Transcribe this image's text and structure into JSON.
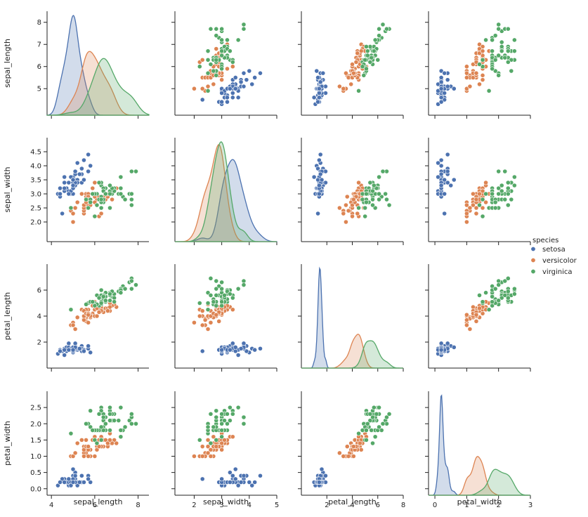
{
  "chart_data": {
    "type": "scatter",
    "title": "",
    "variables": [
      "sepal_length",
      "sepal_width",
      "petal_length",
      "petal_width"
    ],
    "axis_ranges": {
      "sepal_length": [
        3.8,
        8.5
      ],
      "sepal_width": [
        1.3,
        5.0
      ],
      "petal_length": [
        0.0,
        8.0
      ],
      "petal_width": [
        -0.2,
        3.0
      ]
    },
    "ticks": {
      "sepal_length": {
        "values": [
          4,
          6,
          8
        ],
        "labels": [
          "4",
          "6",
          "8"
        ],
        "row_values": [
          5,
          6,
          7,
          8
        ],
        "row_labels": [
          "5",
          "6",
          "7",
          "8"
        ]
      },
      "sepal_width": {
        "values": [
          2,
          3,
          4,
          5
        ],
        "labels": [
          "2",
          "3",
          "4",
          "5"
        ],
        "row_values": [
          2.0,
          2.5,
          3.0,
          3.5,
          4.0,
          4.5
        ],
        "row_labels": [
          "2.0",
          "2.5",
          "3.0",
          "3.5",
          "4.0",
          "4.5"
        ]
      },
      "petal_length": {
        "values": [
          2,
          4,
          6,
          8
        ],
        "labels": [
          "2",
          "4",
          "6",
          "8"
        ],
        "row_values": [
          2,
          4,
          6
        ],
        "row_labels": [
          "2",
          "4",
          "6"
        ]
      },
      "petal_width": {
        "values": [
          0,
          1,
          2,
          3
        ],
        "labels": [
          "0",
          "1",
          "2",
          "3"
        ],
        "row_values": [
          0.0,
          0.5,
          1.0,
          1.5,
          2.0,
          2.5
        ],
        "row_labels": [
          "0.0",
          "0.5",
          "1.0",
          "1.5",
          "2.0",
          "2.5"
        ]
      }
    },
    "legend": {
      "title": "species",
      "position": "right",
      "entries": [
        {
          "name": "setosa",
          "color": "#4c72b0"
        },
        {
          "name": "versicolor",
          "color": "#dd8452"
        },
        {
          "name": "virginica",
          "color": "#55a868"
        }
      ]
    },
    "series": [
      {
        "name": "setosa",
        "points": [
          [
            5.1,
            3.5,
            1.4,
            0.2
          ],
          [
            4.9,
            3.0,
            1.4,
            0.2
          ],
          [
            4.7,
            3.2,
            1.3,
            0.2
          ],
          [
            4.6,
            3.1,
            1.5,
            0.2
          ],
          [
            5.0,
            3.6,
            1.4,
            0.2
          ],
          [
            5.4,
            3.9,
            1.7,
            0.4
          ],
          [
            4.6,
            3.4,
            1.4,
            0.3
          ],
          [
            5.0,
            3.4,
            1.5,
            0.2
          ],
          [
            4.4,
            2.9,
            1.4,
            0.2
          ],
          [
            4.9,
            3.1,
            1.5,
            0.1
          ],
          [
            5.4,
            3.7,
            1.5,
            0.2
          ],
          [
            4.8,
            3.4,
            1.6,
            0.2
          ],
          [
            4.8,
            3.0,
            1.4,
            0.1
          ],
          [
            4.3,
            3.0,
            1.1,
            0.1
          ],
          [
            5.8,
            4.0,
            1.2,
            0.2
          ],
          [
            5.7,
            4.4,
            1.5,
            0.4
          ],
          [
            5.4,
            3.9,
            1.3,
            0.4
          ],
          [
            5.1,
            3.5,
            1.4,
            0.3
          ],
          [
            5.7,
            3.8,
            1.7,
            0.3
          ],
          [
            5.1,
            3.8,
            1.5,
            0.3
          ],
          [
            5.4,
            3.4,
            1.7,
            0.2
          ],
          [
            5.1,
            3.7,
            1.5,
            0.4
          ],
          [
            4.6,
            3.6,
            1.0,
            0.2
          ],
          [
            5.1,
            3.3,
            1.7,
            0.5
          ],
          [
            4.8,
            3.4,
            1.9,
            0.2
          ],
          [
            5.0,
            3.0,
            1.6,
            0.2
          ],
          [
            5.0,
            3.4,
            1.6,
            0.4
          ],
          [
            5.2,
            3.5,
            1.5,
            0.2
          ],
          [
            5.2,
            3.4,
            1.4,
            0.2
          ],
          [
            4.7,
            3.2,
            1.6,
            0.2
          ],
          [
            4.8,
            3.1,
            1.6,
            0.2
          ],
          [
            5.4,
            3.4,
            1.5,
            0.4
          ],
          [
            5.2,
            4.1,
            1.5,
            0.1
          ],
          [
            5.5,
            4.2,
            1.4,
            0.2
          ],
          [
            4.9,
            3.1,
            1.5,
            0.2
          ],
          [
            5.0,
            3.2,
            1.2,
            0.2
          ],
          [
            5.5,
            3.5,
            1.3,
            0.2
          ],
          [
            4.9,
            3.6,
            1.4,
            0.1
          ],
          [
            4.4,
            3.0,
            1.3,
            0.2
          ],
          [
            5.1,
            3.4,
            1.5,
            0.2
          ],
          [
            5.0,
            3.5,
            1.3,
            0.3
          ],
          [
            4.5,
            2.3,
            1.3,
            0.3
          ],
          [
            4.4,
            3.2,
            1.3,
            0.2
          ],
          [
            5.0,
            3.5,
            1.6,
            0.6
          ],
          [
            5.1,
            3.8,
            1.9,
            0.4
          ],
          [
            4.8,
            3.0,
            1.4,
            0.3
          ],
          [
            5.1,
            3.8,
            1.6,
            0.2
          ],
          [
            4.6,
            3.2,
            1.4,
            0.2
          ],
          [
            5.3,
            3.7,
            1.5,
            0.2
          ],
          [
            5.0,
            3.3,
            1.4,
            0.2
          ]
        ]
      },
      {
        "name": "versicolor",
        "points": [
          [
            7.0,
            3.2,
            4.7,
            1.4
          ],
          [
            6.4,
            3.2,
            4.5,
            1.5
          ],
          [
            6.9,
            3.1,
            4.9,
            1.5
          ],
          [
            5.5,
            2.3,
            4.0,
            1.3
          ],
          [
            6.5,
            2.8,
            4.6,
            1.5
          ],
          [
            5.7,
            2.8,
            4.5,
            1.3
          ],
          [
            6.3,
            3.3,
            4.7,
            1.6
          ],
          [
            4.9,
            2.4,
            3.3,
            1.0
          ],
          [
            6.6,
            2.9,
            4.6,
            1.3
          ],
          [
            5.2,
            2.7,
            3.9,
            1.4
          ],
          [
            5.0,
            2.0,
            3.5,
            1.0
          ],
          [
            5.9,
            3.0,
            4.2,
            1.5
          ],
          [
            6.0,
            2.2,
            4.0,
            1.0
          ],
          [
            6.1,
            2.9,
            4.7,
            1.4
          ],
          [
            5.6,
            2.9,
            3.6,
            1.3
          ],
          [
            6.7,
            3.1,
            4.4,
            1.4
          ],
          [
            5.6,
            3.0,
            4.5,
            1.5
          ],
          [
            5.8,
            2.7,
            4.1,
            1.0
          ],
          [
            6.2,
            2.2,
            4.5,
            1.5
          ],
          [
            5.6,
            2.5,
            3.9,
            1.1
          ],
          [
            5.9,
            3.2,
            4.8,
            1.8
          ],
          [
            6.1,
            2.8,
            4.0,
            1.3
          ],
          [
            6.3,
            2.5,
            4.9,
            1.5
          ],
          [
            6.1,
            2.8,
            4.7,
            1.2
          ],
          [
            6.4,
            2.9,
            4.3,
            1.3
          ],
          [
            6.6,
            3.0,
            4.4,
            1.4
          ],
          [
            6.8,
            2.8,
            4.8,
            1.4
          ],
          [
            6.7,
            3.0,
            5.0,
            1.7
          ],
          [
            6.0,
            2.9,
            4.5,
            1.5
          ],
          [
            5.7,
            2.6,
            3.5,
            1.0
          ],
          [
            5.5,
            2.4,
            3.8,
            1.1
          ],
          [
            5.5,
            2.4,
            3.7,
            1.0
          ],
          [
            5.8,
            2.7,
            3.9,
            1.2
          ],
          [
            6.0,
            2.7,
            5.1,
            1.6
          ],
          [
            5.4,
            3.0,
            4.5,
            1.5
          ],
          [
            6.0,
            3.4,
            4.5,
            1.6
          ],
          [
            6.7,
            3.1,
            4.7,
            1.5
          ],
          [
            6.3,
            2.3,
            4.4,
            1.3
          ],
          [
            5.6,
            3.0,
            4.1,
            1.3
          ],
          [
            5.5,
            2.5,
            4.0,
            1.3
          ],
          [
            5.5,
            2.6,
            4.4,
            1.2
          ],
          [
            6.1,
            3.0,
            4.6,
            1.4
          ],
          [
            5.8,
            2.6,
            4.0,
            1.2
          ],
          [
            5.0,
            2.3,
            3.3,
            1.0
          ],
          [
            5.6,
            2.7,
            4.2,
            1.3
          ],
          [
            5.7,
            3.0,
            4.2,
            1.2
          ],
          [
            5.7,
            2.9,
            4.2,
            1.3
          ],
          [
            6.2,
            2.9,
            4.3,
            1.3
          ],
          [
            5.1,
            2.5,
            3.0,
            1.1
          ],
          [
            5.7,
            2.8,
            4.1,
            1.3
          ]
        ]
      },
      {
        "name": "virginica",
        "points": [
          [
            6.3,
            3.3,
            6.0,
            2.5
          ],
          [
            5.8,
            2.7,
            5.1,
            1.9
          ],
          [
            7.1,
            3.0,
            5.9,
            2.1
          ],
          [
            6.3,
            2.9,
            5.6,
            1.8
          ],
          [
            6.5,
            3.0,
            5.8,
            2.2
          ],
          [
            7.6,
            3.0,
            6.6,
            2.1
          ],
          [
            4.9,
            2.5,
            4.5,
            1.7
          ],
          [
            7.3,
            2.9,
            6.3,
            1.8
          ],
          [
            6.7,
            2.5,
            5.8,
            1.8
          ],
          [
            7.2,
            3.6,
            6.1,
            2.5
          ],
          [
            6.5,
            3.2,
            5.1,
            2.0
          ],
          [
            6.4,
            2.7,
            5.3,
            1.9
          ],
          [
            6.8,
            3.0,
            5.5,
            2.1
          ],
          [
            5.7,
            2.5,
            5.0,
            2.0
          ],
          [
            5.8,
            2.8,
            5.1,
            2.4
          ],
          [
            6.4,
            3.2,
            5.3,
            2.3
          ],
          [
            6.5,
            3.0,
            5.5,
            1.8
          ],
          [
            7.7,
            3.8,
            6.7,
            2.2
          ],
          [
            7.7,
            2.6,
            6.9,
            2.3
          ],
          [
            6.0,
            2.2,
            5.0,
            1.5
          ],
          [
            6.9,
            3.2,
            5.7,
            2.3
          ],
          [
            5.6,
            2.8,
            4.9,
            2.0
          ],
          [
            7.7,
            2.8,
            6.7,
            2.0
          ],
          [
            6.3,
            2.7,
            4.9,
            1.8
          ],
          [
            6.7,
            3.3,
            5.7,
            2.1
          ],
          [
            7.2,
            3.2,
            6.0,
            1.8
          ],
          [
            6.2,
            2.8,
            4.8,
            1.8
          ],
          [
            6.1,
            3.0,
            4.9,
            1.8
          ],
          [
            6.4,
            2.8,
            5.6,
            2.1
          ],
          [
            7.2,
            3.0,
            5.8,
            1.6
          ],
          [
            7.4,
            2.8,
            6.1,
            1.9
          ],
          [
            7.9,
            3.8,
            6.4,
            2.0
          ],
          [
            6.4,
            2.8,
            5.6,
            2.2
          ],
          [
            6.3,
            2.8,
            5.1,
            1.5
          ],
          [
            6.1,
            2.6,
            5.6,
            1.4
          ],
          [
            7.7,
            3.0,
            6.1,
            2.3
          ],
          [
            6.3,
            3.4,
            5.6,
            2.4
          ],
          [
            6.4,
            3.1,
            5.5,
            1.8
          ],
          [
            6.0,
            3.0,
            4.8,
            1.8
          ],
          [
            6.9,
            3.1,
            5.4,
            2.1
          ],
          [
            6.7,
            3.1,
            5.6,
            2.4
          ],
          [
            6.9,
            3.1,
            5.1,
            2.3
          ],
          [
            5.8,
            2.7,
            5.1,
            1.9
          ],
          [
            6.8,
            3.2,
            5.9,
            2.3
          ],
          [
            6.7,
            3.3,
            5.7,
            2.5
          ],
          [
            6.7,
            3.0,
            5.2,
            2.3
          ],
          [
            6.3,
            2.5,
            5.0,
            1.9
          ],
          [
            6.5,
            3.0,
            5.2,
            2.0
          ],
          [
            6.2,
            3.4,
            5.4,
            2.3
          ],
          [
            5.9,
            3.0,
            5.1,
            1.8
          ]
        ]
      }
    ]
  }
}
